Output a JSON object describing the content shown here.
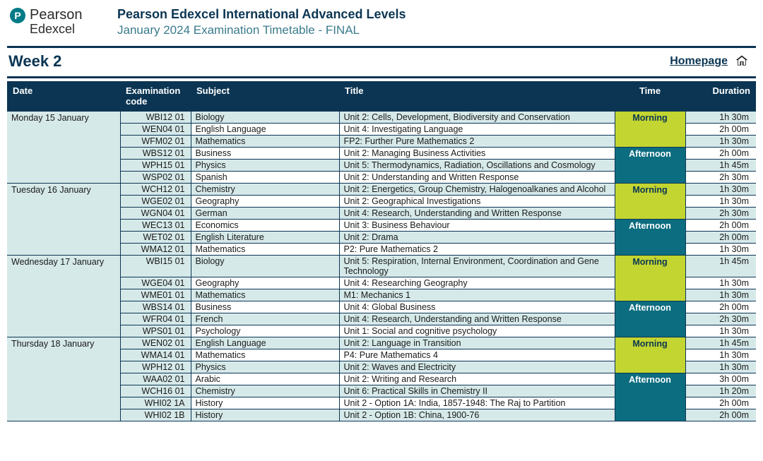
{
  "brand": {
    "initial": "P",
    "name": "Pearson",
    "sub": "Edexcel"
  },
  "header": {
    "title": "Pearson Edexcel International Advanced Levels",
    "subtitle": "January 2024  Examination Timetable - FINAL"
  },
  "week_label": "Week 2",
  "homepage_label": "Homepage",
  "columns": {
    "date": "Date",
    "code_l1": "Examination",
    "code_l2": "code",
    "subject": "Subject",
    "title": "Title",
    "time": "Time",
    "duration": "Duration"
  },
  "time_labels": {
    "morning": "Morning",
    "afternoon": "Afternoon"
  },
  "colors": {
    "header_bg": "#0b3553",
    "mint": "#d6e9e9",
    "morning_bg": "#c3d531",
    "afternoon_bg": "#0d6d80"
  },
  "days": [
    {
      "date": "Monday 15 January",
      "sessions": [
        {
          "time": "morning",
          "exams": [
            {
              "code": "WBI12 01",
              "subject": "Biology",
              "title": "Unit 2: Cells, Development, Biodiversity and Conservation",
              "duration": "1h 30m"
            },
            {
              "code": "WEN04 01",
              "subject": "English Language",
              "title": "Unit 4: Investigating Language",
              "duration": "2h 00m"
            },
            {
              "code": "WFM02 01",
              "subject": "Mathematics",
              "title": "FP2: Further Pure Mathematics 2",
              "duration": "1h 30m"
            }
          ]
        },
        {
          "time": "afternoon",
          "exams": [
            {
              "code": "WBS12 01",
              "subject": "Business",
              "title": "Unit 2: Managing Business Activities",
              "duration": "2h 00m"
            },
            {
              "code": "WPH15 01",
              "subject": "Physics",
              "title": "Unit 5: Thermodynamics, Radiation, Oscillations and Cosmology",
              "duration": "1h 45m"
            },
            {
              "code": "WSP02 01",
              "subject": "Spanish",
              "title": "Unit 2: Understanding and Written Response",
              "duration": "2h 30m"
            }
          ]
        }
      ]
    },
    {
      "date": "Tuesday 16 January",
      "sessions": [
        {
          "time": "morning",
          "exams": [
            {
              "code": "WCH12 01",
              "subject": "Chemistry",
              "title": "Unit 2: Energetics, Group Chemistry, Halogenoalkanes and Alcohol",
              "duration": "1h 30m"
            },
            {
              "code": "WGE02 01",
              "subject": "Geography",
              "title": "Unit 2: Geographical Investigations",
              "duration": "1h 30m"
            },
            {
              "code": "WGN04 01",
              "subject": "German",
              "title": "Unit 4: Research, Understanding and Written Response",
              "duration": "2h 30m"
            }
          ]
        },
        {
          "time": "afternoon",
          "exams": [
            {
              "code": "WEC13 01",
              "subject": "Economics",
              "title": "Unit 3: Business Behaviour",
              "duration": "2h 00m"
            },
            {
              "code": "WET02 01",
              "subject": "English Literature",
              "title": "Unit 2: Drama",
              "duration": "2h 00m"
            },
            {
              "code": "WMA12 01",
              "subject": "Mathematics",
              "title": "P2: Pure Mathematics 2",
              "duration": "1h 30m"
            }
          ]
        }
      ]
    },
    {
      "date": "Wednesday 17 January",
      "sessions": [
        {
          "time": "morning",
          "exams": [
            {
              "code": "WBI15 01",
              "subject": "Biology",
              "title": "Unit 5: Respiration, Internal Environment, Coordination and Gene Technology",
              "duration": "1h 45m"
            },
            {
              "code": "WGE04 01",
              "subject": "Geography",
              "title": "Unit 4: Researching Geography",
              "duration": "1h 30m"
            },
            {
              "code": "WME01 01",
              "subject": "Mathematics",
              "title": "M1: Mechanics 1",
              "duration": "1h 30m"
            }
          ]
        },
        {
          "time": "afternoon",
          "exams": [
            {
              "code": "WBS14 01",
              "subject": "Business",
              "title": "Unit 4: Global Business",
              "duration": "2h 00m"
            },
            {
              "code": "WFR04 01",
              "subject": "French",
              "title": "Unit 4: Research, Understanding and Written Response",
              "duration": "2h 30m"
            },
            {
              "code": "WPS01 01",
              "subject": "Psychology",
              "title": "Unit 1: Social and cognitive psychology",
              "duration": "1h 30m"
            }
          ]
        }
      ]
    },
    {
      "date": "Thursday 18 January",
      "sessions": [
        {
          "time": "morning",
          "exams": [
            {
              "code": "WEN02 01",
              "subject": "English Language",
              "title": "Unit 2: Language in Transition",
              "duration": "1h 45m"
            },
            {
              "code": "WMA14 01",
              "subject": "Mathematics",
              "title": "P4: Pure Mathematics 4",
              "duration": "1h 30m"
            },
            {
              "code": "WPH12 01",
              "subject": "Physics",
              "title": "Unit 2: Waves and Electricity",
              "duration": "1h 30m"
            }
          ]
        },
        {
          "time": "afternoon",
          "exams": [
            {
              "code": "WAA02 01",
              "subject": "Arabic",
              "title": "Unit 2: Writing and Research",
              "duration": "3h 00m"
            },
            {
              "code": "WCH16 01",
              "subject": "Chemistry",
              "title": "Unit 6: Practical Skills in Chemistry II",
              "duration": "1h 20m"
            },
            {
              "code": "WHI02 1A",
              "subject": "History",
              "title": "Unit 2 - Option 1A: India, 1857-1948: The Raj to Partition",
              "duration": "2h 00m"
            },
            {
              "code": "WHI02 1B",
              "subject": "History",
              "title": "Unit 2 - Option 1B: China, 1900-76",
              "duration": "2h 00m"
            }
          ]
        }
      ]
    }
  ]
}
